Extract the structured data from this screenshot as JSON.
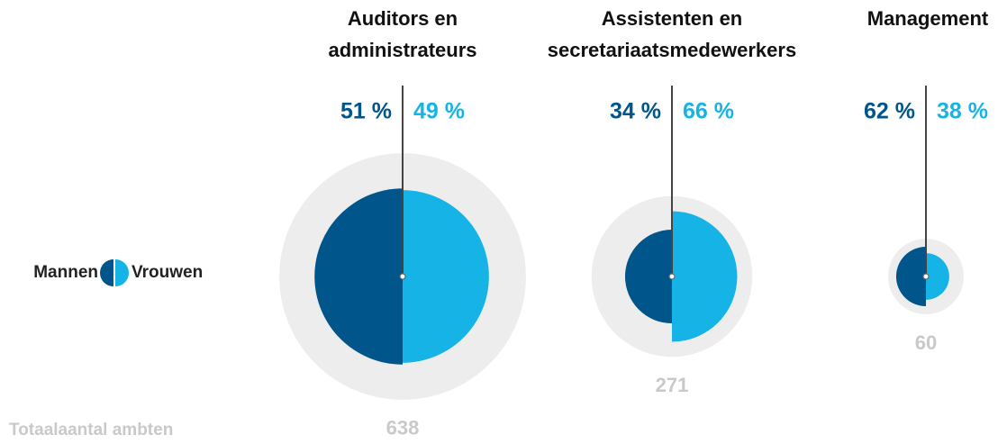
{
  "chart_data": {
    "type": "bubble",
    "categories": [
      [
        "Auditors en",
        "administrateurs"
      ],
      [
        "Assistenten en",
        "secretariaatsmedewerkers"
      ],
      [
        "Management"
      ]
    ],
    "series": [
      {
        "name": "Mannen",
        "color": "#00558a",
        "values": [
          51,
          34,
          62
        ],
        "value_labels": [
          "51 %",
          "34 %",
          "62 %"
        ]
      },
      {
        "name": "Vrouwen",
        "color": "#16b4e6",
        "values": [
          49,
          66,
          38
        ],
        "value_labels": [
          "49 %",
          "66 %",
          "38 %"
        ]
      }
    ],
    "total_label": "Totaalaantal ambten",
    "totals": [
      638,
      271,
      60
    ],
    "total_color": "#ededee"
  }
}
